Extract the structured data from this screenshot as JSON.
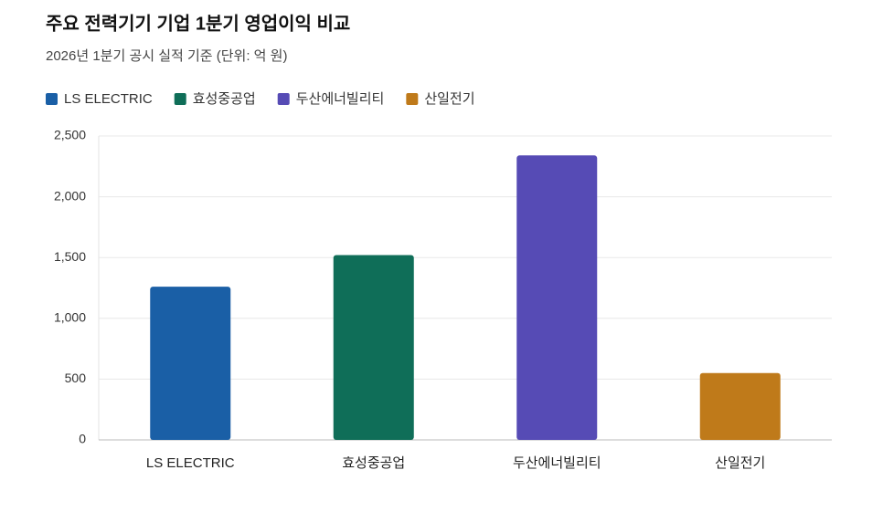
{
  "chart_data": {
    "type": "bar",
    "title": "주요 전력기기 기업 1분기 영업이익 비교",
    "subtitle": "2026년 1분기 공시 실적 기준 (단위: 억 원)",
    "categories": [
      "LS ELECTRIC",
      "효성중공업",
      "두산에너빌리티",
      "산일전기"
    ],
    "values": [
      1260,
      1520,
      2340,
      550
    ],
    "colors": [
      "#1a5fa6",
      "#0f6e58",
      "#564bb5",
      "#bf7a1a"
    ],
    "ylim": [
      0,
      2500
    ],
    "yticks": [
      0,
      500,
      {
        "value": 1000,
        "label": "1,000"
      },
      {
        "value": 1500,
        "label": "1,500"
      },
      {
        "value": 2000,
        "label": "2,000"
      },
      {
        "value": 2500,
        "label": "2,500"
      }
    ],
    "grid": true
  }
}
